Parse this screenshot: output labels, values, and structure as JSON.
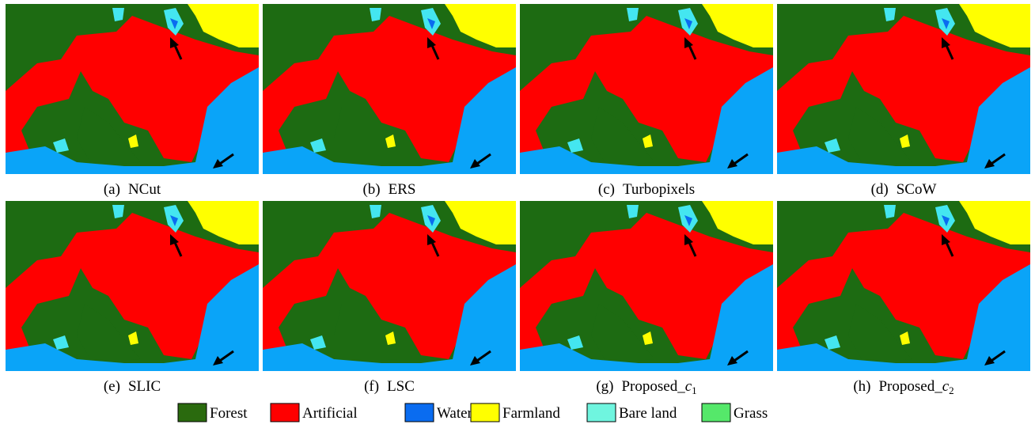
{
  "panels": [
    {
      "label": "(a)",
      "name": "NCut"
    },
    {
      "label": "(b)",
      "name": "ERS"
    },
    {
      "label": "(c)",
      "name": "Turbopixels"
    },
    {
      "label": "(d)",
      "name": "SCoW"
    },
    {
      "label": "(e)",
      "name": "SLIC"
    },
    {
      "label": "(f)",
      "name": "LSC"
    },
    {
      "label": "(g)",
      "name": "Proposed_",
      "var": "c",
      "sub": "1"
    },
    {
      "label": "(h)",
      "name": "Proposed_",
      "var": "c",
      "sub": "2"
    }
  ],
  "legend": [
    {
      "name": "Forest",
      "color": "#2a6a0e"
    },
    {
      "name": "Artificial",
      "color": "#ff0000"
    },
    {
      "name": "Water",
      "color": "#0a6cf0"
    },
    {
      "name": "Farmland",
      "color": "#ffff00"
    },
    {
      "name": "Bare land",
      "color": "#6ff5df"
    },
    {
      "name": "Grass",
      "color": "#55e86a"
    }
  ]
}
